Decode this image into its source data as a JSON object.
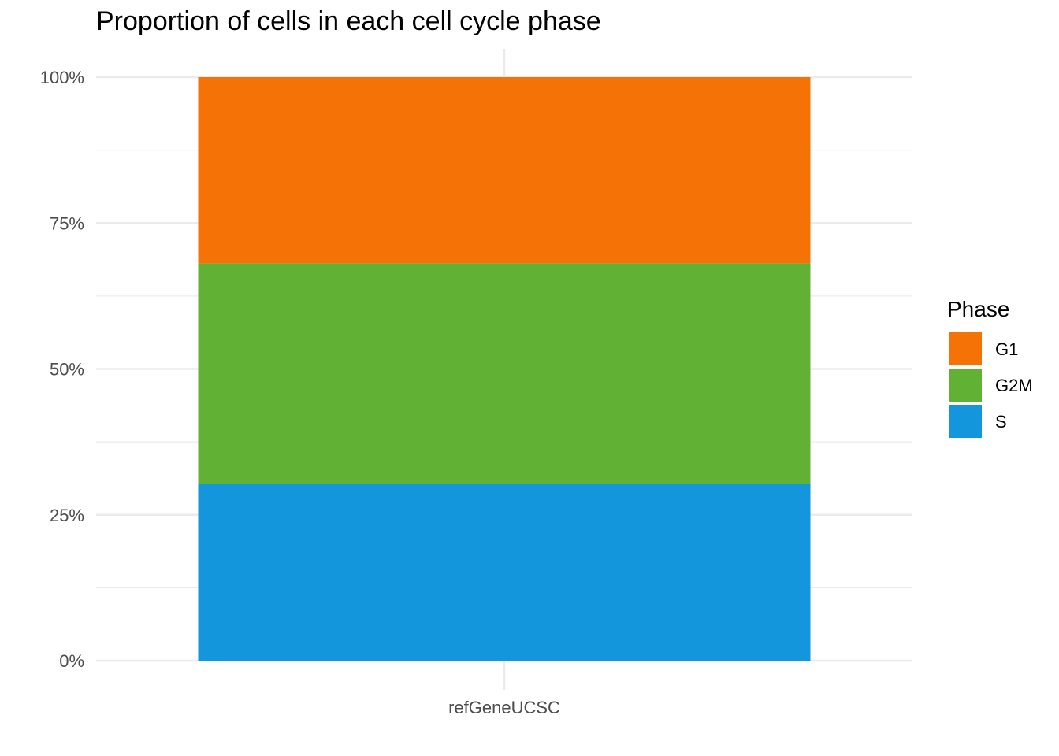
{
  "chart_data": {
    "type": "bar",
    "stacked": true,
    "title": "Proportion of cells in each cell cycle phase",
    "xlabel": "",
    "ylabel": "",
    "categories": [
      "refGeneUCSC"
    ],
    "ylim": [
      0,
      1
    ],
    "y_ticks": [
      {
        "value": 0,
        "label": "0%"
      },
      {
        "value": 0.25,
        "label": "25%"
      },
      {
        "value": 0.5,
        "label": "50%"
      },
      {
        "value": 0.75,
        "label": "75%"
      },
      {
        "value": 1,
        "label": "100%"
      }
    ],
    "series": [
      {
        "name": "S",
        "values": [
          0.303
        ],
        "color": "#1396db"
      },
      {
        "name": "G2M",
        "values": [
          0.378
        ],
        "color": "#61b234"
      },
      {
        "name": "G1",
        "values": [
          0.319
        ],
        "color": "#f57206"
      }
    ],
    "grid": true,
    "legend": {
      "title": "Phase",
      "position": "right",
      "order": [
        "G1",
        "G2M",
        "S"
      ]
    }
  }
}
